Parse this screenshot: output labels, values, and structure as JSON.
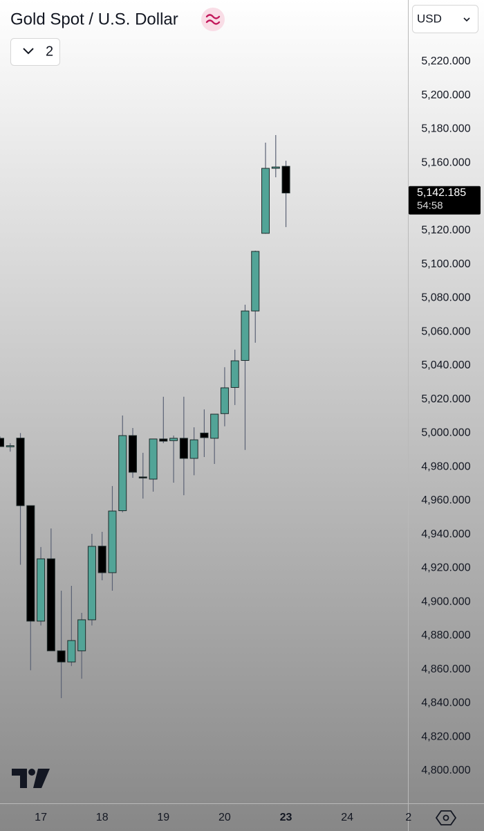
{
  "header": {
    "title": "Gold Spot / U.S. Dollar",
    "indicator_toggle": "2",
    "currency": "USD"
  },
  "chart_data": {
    "type": "candlestick",
    "categories": [
      null,
      null,
      null,
      null,
      "17",
      null,
      null,
      null,
      null,
      null,
      "18",
      null,
      null,
      null,
      null,
      null,
      "19",
      null,
      null,
      null,
      null,
      null,
      "20",
      null,
      null,
      null,
      null,
      null,
      "23",
      null,
      null,
      null,
      null,
      null,
      "24",
      null,
      null,
      null,
      null,
      null,
      "2"
    ],
    "open": [
      4996.9,
      4992,
      4997,
      4957,
      4888.6,
      4925.5,
      4871,
      4864.4,
      4871,
      4889.4,
      4933,
      4917.3,
      4954,
      4998.5,
      4974,
      4972.7,
      4996.5,
      4995.5,
      4996.9,
      4985,
      5000,
      4996.9,
      5011.5,
      5027,
      5043,
      5072.3,
      5118.3,
      5156.8,
      5158,
      null,
      null,
      null,
      null,
      null,
      null,
      null,
      null,
      null,
      null,
      null,
      null
    ],
    "high": [
      4998,
      4994,
      5000,
      4957,
      4932.5,
      4943.5,
      4906.6,
      4909.5,
      4893.5,
      4940.3,
      4941.5,
      4968.6,
      5010.4,
      5003,
      4988.3,
      4996.5,
      5021.5,
      4998.5,
      5021.5,
      5003.4,
      5014,
      5011.2,
      5039,
      5049.4,
      5076,
      5108,
      5172,
      5176.5,
      5161.3,
      null,
      null,
      null,
      null,
      null,
      null,
      null,
      null,
      null,
      null,
      null,
      null
    ],
    "low": [
      4992,
      4989,
      4922,
      4859.5,
      4886,
      4871,
      4843,
      4862,
      4854.5,
      4886,
      4912.8,
      4906.6,
      4953,
      4973.5,
      4961.2,
      4965.3,
      4994,
      4970.6,
      4963.2,
      4975,
      4985.8,
      4981.7,
      5004,
      5016.6,
      4990,
      5053.5,
      5118,
      5151.5,
      5122,
      null,
      null,
      null,
      null,
      null,
      null,
      null,
      null,
      null,
      null,
      null,
      null
    ],
    "close": [
      4992,
      4992.5,
      4957,
      4888.6,
      4925.5,
      4871,
      4864.4,
      4877.1,
      4889.4,
      4932.9,
      4917.3,
      4953.8,
      4998.5,
      4976.8,
      4973.5,
      4996.5,
      4995.2,
      4996.9,
      4985,
      4996,
      4997.3,
      5011.2,
      5026.8,
      5042.8,
      5072.3,
      5107.6,
      5156.8,
      5157.6,
      5142.2,
      null,
      null,
      null,
      null,
      null,
      null,
      null,
      null,
      null,
      null,
      null,
      null
    ],
    "up_color": "#52a497",
    "down_color": "#000000",
    "wick_color": "#5b6275",
    "ylim": [
      4780.7,
      5256.5
    ],
    "yticks": [
      {
        "value": 4800,
        "label": "4,800.000"
      },
      {
        "value": 4820,
        "label": "4,820.000"
      },
      {
        "value": 4840,
        "label": "4,840.000"
      },
      {
        "value": 4860,
        "label": "4,860.000"
      },
      {
        "value": 4880,
        "label": "4,880.000"
      },
      {
        "value": 4900,
        "label": "4,900.000"
      },
      {
        "value": 4920,
        "label": "4,920.000"
      },
      {
        "value": 4940,
        "label": "4,940.000"
      },
      {
        "value": 4960,
        "label": "4,960.000"
      },
      {
        "value": 4980,
        "label": "4,980.000"
      },
      {
        "value": 5000,
        "label": "5,000.000"
      },
      {
        "value": 5020,
        "label": "5,020.000"
      },
      {
        "value": 5040,
        "label": "5,040.000"
      },
      {
        "value": 5060,
        "label": "5,060.000"
      },
      {
        "value": 5080,
        "label": "5,080.000"
      },
      {
        "value": 5100,
        "label": "5,100.000"
      },
      {
        "value": 5120,
        "label": "5,120.000"
      },
      {
        "value": 5140,
        "label": "5,140.000"
      },
      {
        "value": 5160,
        "label": "5,160.000"
      },
      {
        "value": 5180,
        "label": "5,180.000"
      },
      {
        "value": 5200,
        "label": "5,200.000"
      },
      {
        "value": 5220,
        "label": "5,220.000"
      }
    ],
    "last_price": {
      "value": 5142.185,
      "label": "5,142.185"
    },
    "countdown": "54:58"
  }
}
